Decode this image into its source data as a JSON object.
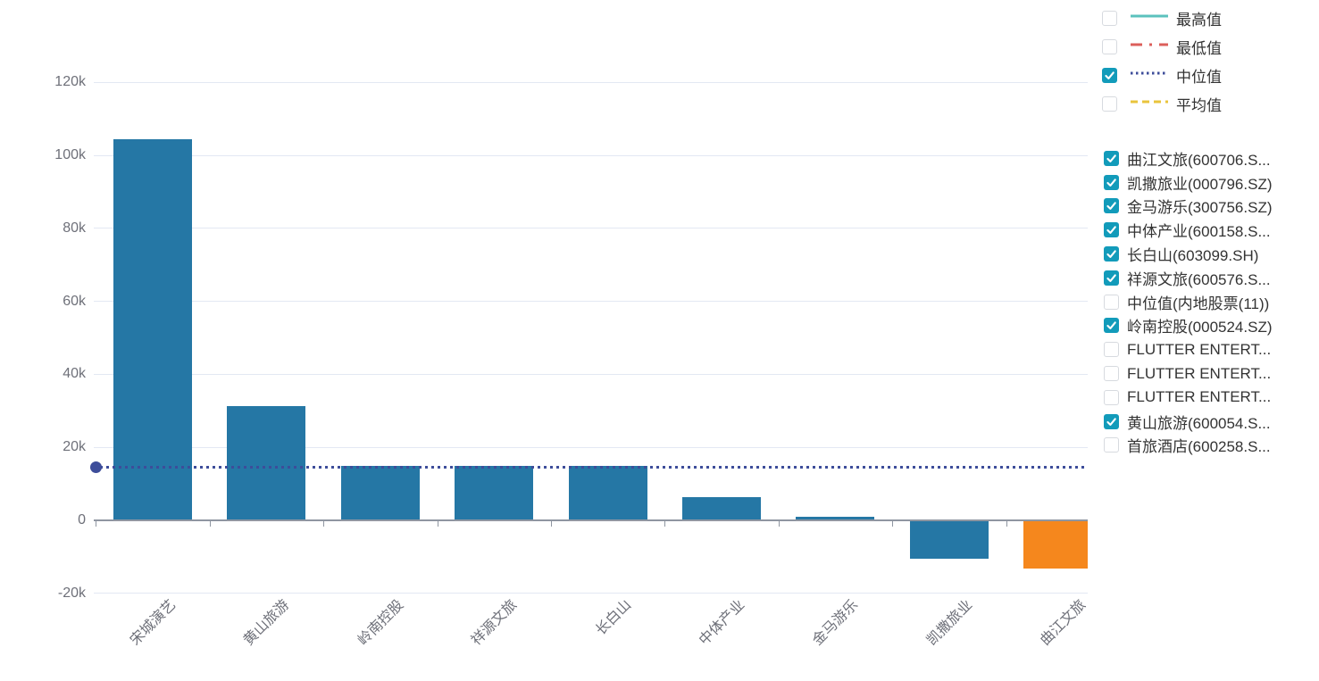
{
  "colors": {
    "bar_blue": "#2577A5",
    "bar_orange": "#F5871D",
    "checkbox_checked": "#129BBA",
    "median_line": "#3D4D9A",
    "max_line": "#5BC2BD",
    "min_line": "#DC5F5B",
    "avg_line": "#E9C43C",
    "axis_text": "#6E7079",
    "legend_text": "#333333"
  },
  "line_legend": {
    "items": [
      {
        "label": "最高值",
        "checked": false,
        "color": "#5BC2BD",
        "style": "solid"
      },
      {
        "label": "最低值",
        "checked": false,
        "color": "#DC5F5B",
        "style": "dashdot"
      },
      {
        "label": "中位值",
        "checked": true,
        "color": "#3D4D9A",
        "style": "dotted"
      },
      {
        "label": "平均值",
        "checked": false,
        "color": "#E9C43C",
        "style": "dashed"
      }
    ]
  },
  "series_legend": {
    "items": [
      {
        "label": "曲江文旅(600706.S...",
        "checked": true
      },
      {
        "label": "凯撒旅业(000796.SZ)",
        "checked": true
      },
      {
        "label": "金马游乐(300756.SZ)",
        "checked": true
      },
      {
        "label": "中体产业(600158.S...",
        "checked": true
      },
      {
        "label": "长白山(603099.SH)",
        "checked": true
      },
      {
        "label": "祥源文旅(600576.S...",
        "checked": true
      },
      {
        "label": "中位值(内地股票(11))",
        "checked": false
      },
      {
        "label": "岭南控股(000524.SZ)",
        "checked": true
      },
      {
        "label": "FLUTTER ENTERT...",
        "checked": false
      },
      {
        "label": "FLUTTER ENTERT...",
        "checked": false
      },
      {
        "label": "FLUTTER ENTERT...",
        "checked": false
      },
      {
        "label": "黄山旅游(600054.S...",
        "checked": true
      },
      {
        "label": "首旅酒店(600258.S...",
        "checked": false
      }
    ]
  },
  "chart_data": {
    "type": "bar",
    "title": "",
    "xlabel": "",
    "ylabel": "",
    "categories": [
      "宋城演艺",
      "黄山旅游",
      "岭南控股",
      "祥源文旅",
      "长白山",
      "中体产业",
      "金马游乐",
      "凯撒旅业",
      "曲江文旅"
    ],
    "values": [
      104500,
      31300,
      15000,
      14800,
      14800,
      6300,
      1000,
      -10300,
      -13000
    ],
    "bar_colors": [
      "#2577A5",
      "#2577A5",
      "#2577A5",
      "#2577A5",
      "#2577A5",
      "#2577A5",
      "#2577A5",
      "#2577A5",
      "#F5871D"
    ],
    "yticks": {
      "values": [
        120000,
        100000,
        80000,
        60000,
        40000,
        20000,
        0,
        -20000
      ],
      "labels": [
        "120k",
        "100k",
        "80k",
        "60k",
        "40k",
        "20k",
        "0",
        "-20k"
      ]
    },
    "ylim": [
      -20000,
      120000
    ],
    "grid": true,
    "legend_position": "right",
    "median_line": {
      "name": "中位值",
      "value": 14600,
      "color": "#3D4D9A"
    }
  }
}
